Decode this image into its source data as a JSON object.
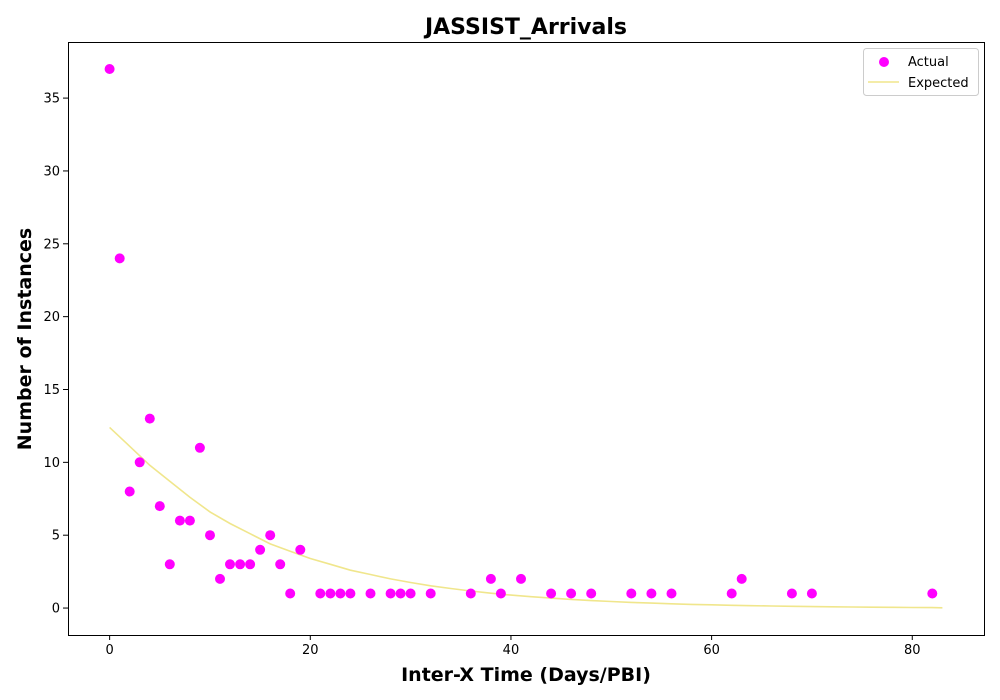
{
  "chart_data": {
    "type": "scatter",
    "title": "JASSIST_Arrivals",
    "xlabel": "Inter-X Time (Days/PBI)",
    "ylabel": "Number of Instances",
    "xlim": [
      -4.15,
      87.15
    ],
    "ylim": [
      -1.85,
      38.85
    ],
    "xticks": [
      0,
      20,
      40,
      60,
      80
    ],
    "yticks": [
      0,
      5,
      10,
      15,
      20,
      25,
      30,
      35
    ],
    "grid": false,
    "legend_position": "top-right",
    "colors": {
      "actual": "#ff00ff",
      "expected": "#f0e68c"
    },
    "series": [
      {
        "name": "Actual",
        "kind": "scatter",
        "x": [
          0,
          1,
          2,
          3,
          4,
          5,
          6,
          7,
          8,
          9,
          10,
          11,
          12,
          13,
          14,
          15,
          16,
          17,
          18,
          19,
          21,
          22,
          23,
          24,
          26,
          28,
          29,
          30,
          32,
          36,
          38,
          39,
          41,
          44,
          46,
          48,
          52,
          54,
          56,
          62,
          63,
          68,
          70,
          82
        ],
        "y": [
          37,
          24,
          8,
          10,
          13,
          7,
          3,
          6,
          6,
          11,
          5,
          2,
          3,
          3,
          3,
          4,
          5,
          3,
          1,
          4,
          1,
          1,
          1,
          1,
          1,
          1,
          1,
          1,
          1,
          1,
          2,
          1,
          2,
          1,
          1,
          1,
          1,
          1,
          1,
          1,
          2,
          1,
          1,
          1
        ]
      },
      {
        "name": "Expected",
        "kind": "line",
        "x": [
          0,
          2,
          4,
          6,
          8,
          10,
          12,
          14,
          16,
          18,
          20,
          22,
          24,
          26,
          28,
          30,
          32,
          34,
          36,
          38,
          40,
          42,
          44,
          46,
          48,
          50,
          52,
          54,
          56,
          58,
          60,
          62,
          64,
          66,
          68,
          70,
          72,
          74,
          76,
          78,
          80,
          82,
          83
        ],
        "y": [
          12.4,
          11.1,
          9.8,
          8.7,
          7.6,
          6.6,
          5.8,
          5.1,
          4.4,
          3.9,
          3.4,
          3.0,
          2.6,
          2.3,
          2.0,
          1.75,
          1.53,
          1.34,
          1.17,
          1.02,
          0.89,
          0.78,
          0.68,
          0.59,
          0.51,
          0.45,
          0.39,
          0.34,
          0.29,
          0.25,
          0.22,
          0.19,
          0.16,
          0.14,
          0.12,
          0.1,
          0.085,
          0.07,
          0.06,
          0.05,
          0.04,
          0.03,
          0.02
        ]
      }
    ]
  }
}
